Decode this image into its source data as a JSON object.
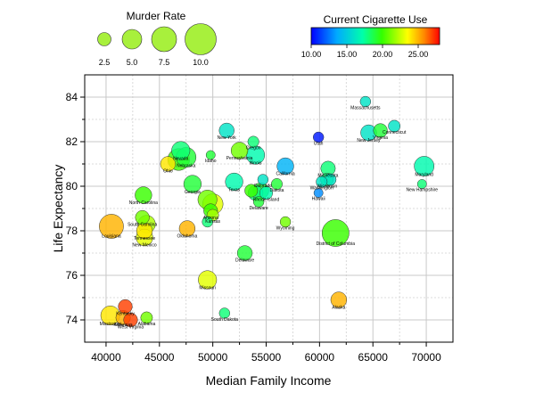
{
  "chart_data": {
    "type": "scatter",
    "subtype": "bubble",
    "title": "",
    "xlabel": "Median Family Income",
    "ylabel": "Life Expectancy",
    "xlim": [
      38000,
      72500
    ],
    "ylim": [
      73,
      85
    ],
    "x_ticks": [
      "40000",
      "45000",
      "50000",
      "55000",
      "60000",
      "65000",
      "70000"
    ],
    "y_ticks": [
      "74",
      "76",
      "78",
      "80",
      "82",
      "84"
    ],
    "grid": true,
    "size_legend": {
      "title": "Murder Rate",
      "entries": [
        "2.5",
        "5.0",
        "7.5",
        "10.0"
      ],
      "values": [
        2.5,
        5.0,
        7.5,
        10.0
      ]
    },
    "color_legend": {
      "title": "Current Cigarette Use",
      "ticks": [
        "10.00",
        "15.00",
        "20.00",
        "25.00"
      ],
      "min": 10,
      "max": 28
    },
    "points": [
      {
        "label": "Massachusetts",
        "x": 64300,
        "y": 83.8,
        "size": 2.0,
        "color": 16
      },
      {
        "label": "New York",
        "x": 51300,
        "y": 82.5,
        "size": 4.0,
        "color": 16
      },
      {
        "label": "Oregon",
        "x": 53800,
        "y": 82.0,
        "size": 2.2,
        "color": 18
      },
      {
        "label": "Utah",
        "x": 59900,
        "y": 82.2,
        "size": 2.0,
        "color": 10.5
      },
      {
        "label": "New Jersey",
        "x": 64600,
        "y": 82.4,
        "size": 4.5,
        "color": 16
      },
      {
        "label": "Virginia",
        "x": 65700,
        "y": 82.5,
        "size": 3.5,
        "color": 19
      },
      {
        "label": "Connecticut",
        "x": 67000,
        "y": 82.7,
        "size": 2.5,
        "color": 16
      },
      {
        "label": "Idaho",
        "x": 49800,
        "y": 81.4,
        "size": 1.5,
        "color": 19
      },
      {
        "label": "Pennsylvania",
        "x": 52500,
        "y": 81.6,
        "size": 5.0,
        "color": 21
      },
      {
        "label": "Illinois",
        "x": 54000,
        "y": 81.4,
        "size": 6.0,
        "color": 17
      },
      {
        "label": "Nevada",
        "x": 47000,
        "y": 81.6,
        "size": 6.0,
        "color": 18
      },
      {
        "label": "Nebraska",
        "x": 47500,
        "y": 81.3,
        "size": 7.0,
        "color": 19
      },
      {
        "label": "Ohio",
        "x": 45800,
        "y": 81.0,
        "size": 4.0,
        "color": 24
      },
      {
        "label": "",
        "x": 46800,
        "y": 81.2,
        "size": 8.5,
        "color": 20
      },
      {
        "label": "California",
        "x": 56800,
        "y": 80.9,
        "size": 5.0,
        "color": 14
      },
      {
        "label": "Minnesota",
        "x": 60800,
        "y": 80.8,
        "size": 3.8,
        "color": 18
      },
      {
        "label": "Wisconsin",
        "x": 60700,
        "y": 80.3,
        "size": 3.0,
        "color": 18
      },
      {
        "label": "",
        "x": 61000,
        "y": 80.3,
        "size": 2.5,
        "color": 16
      },
      {
        "label": "Washington",
        "x": 60200,
        "y": 80.2,
        "size": 2.2,
        "color": 16
      },
      {
        "label": "Hawaii",
        "x": 59900,
        "y": 79.7,
        "size": 1.5,
        "color": 13
      },
      {
        "label": "Maryland",
        "x": 69800,
        "y": 80.9,
        "size": 7.0,
        "color": 17
      },
      {
        "label": "New Hampshire",
        "x": 69600,
        "y": 80.1,
        "size": 1.5,
        "color": 18
      },
      {
        "label": "Texas",
        "x": 52000,
        "y": 80.2,
        "size": 5.5,
        "color": 17
      },
      {
        "label": "Colorado",
        "x": 54700,
        "y": 80.3,
        "size": 2.0,
        "color": 16
      },
      {
        "label": "Dakota",
        "x": 56000,
        "y": 80.1,
        "size": 2.2,
        "color": 19
      },
      {
        "label": "Georgia",
        "x": 48100,
        "y": 80.1,
        "size": 5.5,
        "color": 19
      },
      {
        "label": "",
        "x": 53600,
        "y": 79.8,
        "size": 3.0,
        "color": 20
      },
      {
        "label": "",
        "x": 54000,
        "y": 79.7,
        "size": 4.0,
        "color": 18
      },
      {
        "label": "",
        "x": 54500,
        "y": 79.8,
        "size": 4.5,
        "color": 19
      },
      {
        "label": "Rhode Island",
        "x": 55000,
        "y": 79.7,
        "size": 3.0,
        "color": 17
      },
      {
        "label": "Delaware",
        "x": 54300,
        "y": 79.3,
        "size": 2.0,
        "color": 19
      },
      {
        "label": "",
        "x": 49500,
        "y": 79.4,
        "size": 6.5,
        "color": 21
      },
      {
        "label": "",
        "x": 50000,
        "y": 79.2,
        "size": 7.5,
        "color": 23
      },
      {
        "label": "Arizona",
        "x": 49800,
        "y": 78.9,
        "size": 3.5,
        "color": 20
      },
      {
        "label": "Kansas",
        "x": 50000,
        "y": 78.7,
        "size": 2.5,
        "color": 22
      },
      {
        "label": "",
        "x": 49500,
        "y": 78.4,
        "size": 2.0,
        "color": 18
      },
      {
        "label": "North Carolina",
        "x": 43500,
        "y": 79.6,
        "size": 5.0,
        "color": 20
      },
      {
        "label": "South Carolina",
        "x": 43400,
        "y": 78.6,
        "size": 3.5,
        "color": 21
      },
      {
        "label": "",
        "x": 43800,
        "y": 78.3,
        "size": 5.5,
        "color": 22
      },
      {
        "label": "Tennessee",
        "x": 43600,
        "y": 78.0,
        "size": 4.5,
        "color": 24
      },
      {
        "label": "New Mexico",
        "x": 43600,
        "y": 77.7,
        "size": 5.0,
        "color": 23
      },
      {
        "label": "Louisiana",
        "x": 40500,
        "y": 78.2,
        "size": 10.5,
        "color": 25
      },
      {
        "label": "Oklahoma",
        "x": 47600,
        "y": 78.1,
        "size": 4.5,
        "color": 25
      },
      {
        "label": "Wyoming",
        "x": 56800,
        "y": 78.4,
        "size": 2.0,
        "color": 21
      },
      {
        "label": "District of Columbia",
        "x": 61500,
        "y": 77.9,
        "size": 13.0,
        "color": 20
      },
      {
        "label": "Delaware",
        "x": 53000,
        "y": 77.0,
        "size": 4.0,
        "color": 19
      },
      {
        "label": "Missouri",
        "x": 49500,
        "y": 75.8,
        "size": 6.0,
        "color": 23
      },
      {
        "label": "Alaska",
        "x": 61800,
        "y": 74.9,
        "size": 4.5,
        "color": 25
      },
      {
        "label": "South Dakota",
        "x": 51100,
        "y": 74.3,
        "size": 2.0,
        "color": 18
      },
      {
        "label": "Kentucky",
        "x": 41800,
        "y": 74.6,
        "size": 3.5,
        "color": 27
      },
      {
        "label": "Arkansas",
        "x": 41600,
        "y": 74.1,
        "size": 3.8,
        "color": 25
      },
      {
        "label": "Mississippi",
        "x": 40400,
        "y": 74.2,
        "size": 6.5,
        "color": 24
      },
      {
        "label": "West Virginia",
        "x": 42300,
        "y": 74.0,
        "size": 3.5,
        "color": 27
      },
      {
        "label": "Alabama",
        "x": 43800,
        "y": 74.1,
        "size": 2.5,
        "color": 21
      }
    ]
  }
}
